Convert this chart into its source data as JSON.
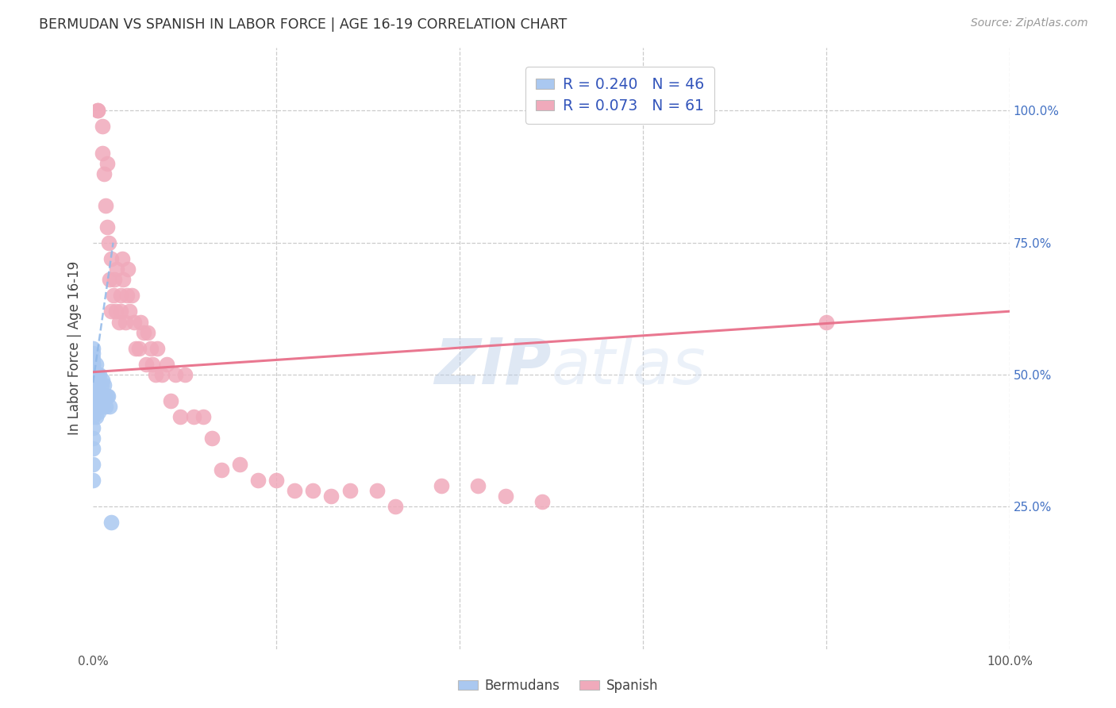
{
  "title": "BERMUDAN VS SPANISH IN LABOR FORCE | AGE 16-19 CORRELATION CHART",
  "source": "Source: ZipAtlas.com",
  "ylabel": "In Labor Force | Age 16-19",
  "xlim": [
    0.0,
    1.0
  ],
  "ylim": [
    -0.02,
    1.12
  ],
  "background_color": "#ffffff",
  "grid_color": "#cccccc",
  "watermark_text": "ZIPatlas",
  "legend_R1": "R = 0.240",
  "legend_N1": "N = 46",
  "legend_R2": "R = 0.073",
  "legend_N2": "N = 61",
  "bermudan_color": "#aac8f0",
  "spanish_color": "#f0aabb",
  "bermudan_line_color": "#90b8e8",
  "spanish_line_color": "#e8708a",
  "legend_text_color": "#3355bb",
  "right_tick_color": "#4472c4",
  "bermudan_x": [
    0.0,
    0.0,
    0.0,
    0.0,
    0.0,
    0.0,
    0.0,
    0.0,
    0.0,
    0.0,
    0.0,
    0.0,
    0.0,
    0.0,
    0.0,
    0.0,
    0.0,
    0.0,
    0.0,
    0.0,
    0.0,
    0.0,
    0.0,
    0.003,
    0.003,
    0.003,
    0.004,
    0.004,
    0.005,
    0.005,
    0.006,
    0.006,
    0.007,
    0.007,
    0.008,
    0.009,
    0.01,
    0.01,
    0.011,
    0.012,
    0.013,
    0.014,
    0.015,
    0.016,
    0.018,
    0.02
  ],
  "bermudan_y": [
    0.3,
    0.33,
    0.36,
    0.38,
    0.4,
    0.42,
    0.43,
    0.44,
    0.45,
    0.46,
    0.47,
    0.48,
    0.48,
    0.49,
    0.49,
    0.5,
    0.5,
    0.51,
    0.52,
    0.52,
    0.53,
    0.54,
    0.55,
    0.42,
    0.47,
    0.52,
    0.45,
    0.5,
    0.44,
    0.5,
    0.43,
    0.48,
    0.44,
    0.5,
    0.46,
    0.48,
    0.44,
    0.49,
    0.46,
    0.48,
    0.46,
    0.44,
    0.46,
    0.46,
    0.44,
    0.22
  ],
  "spanish_x": [
    0.005,
    0.005,
    0.01,
    0.01,
    0.012,
    0.014,
    0.015,
    0.015,
    0.017,
    0.018,
    0.02,
    0.02,
    0.022,
    0.023,
    0.025,
    0.026,
    0.028,
    0.03,
    0.03,
    0.032,
    0.033,
    0.035,
    0.037,
    0.038,
    0.04,
    0.042,
    0.045,
    0.047,
    0.05,
    0.052,
    0.055,
    0.058,
    0.06,
    0.063,
    0.065,
    0.068,
    0.07,
    0.075,
    0.08,
    0.085,
    0.09,
    0.095,
    0.1,
    0.11,
    0.12,
    0.13,
    0.14,
    0.16,
    0.18,
    0.2,
    0.22,
    0.24,
    0.26,
    0.28,
    0.31,
    0.33,
    0.38,
    0.42,
    0.45,
    0.49,
    0.8
  ],
  "spanish_y": [
    1.0,
    1.0,
    0.97,
    0.92,
    0.88,
    0.82,
    0.78,
    0.9,
    0.75,
    0.68,
    0.62,
    0.72,
    0.65,
    0.68,
    0.62,
    0.7,
    0.6,
    0.65,
    0.62,
    0.72,
    0.68,
    0.6,
    0.65,
    0.7,
    0.62,
    0.65,
    0.6,
    0.55,
    0.55,
    0.6,
    0.58,
    0.52,
    0.58,
    0.55,
    0.52,
    0.5,
    0.55,
    0.5,
    0.52,
    0.45,
    0.5,
    0.42,
    0.5,
    0.42,
    0.42,
    0.38,
    0.32,
    0.33,
    0.3,
    0.3,
    0.28,
    0.28,
    0.27,
    0.28,
    0.28,
    0.25,
    0.29,
    0.29,
    0.27,
    0.26,
    0.6
  ],
  "bermudan_trend_x": [
    0.0,
    0.022
  ],
  "bermudan_trend_y": [
    0.485,
    0.75
  ],
  "spanish_trend_x": [
    0.0,
    1.0
  ],
  "spanish_trend_y": [
    0.505,
    0.62
  ]
}
